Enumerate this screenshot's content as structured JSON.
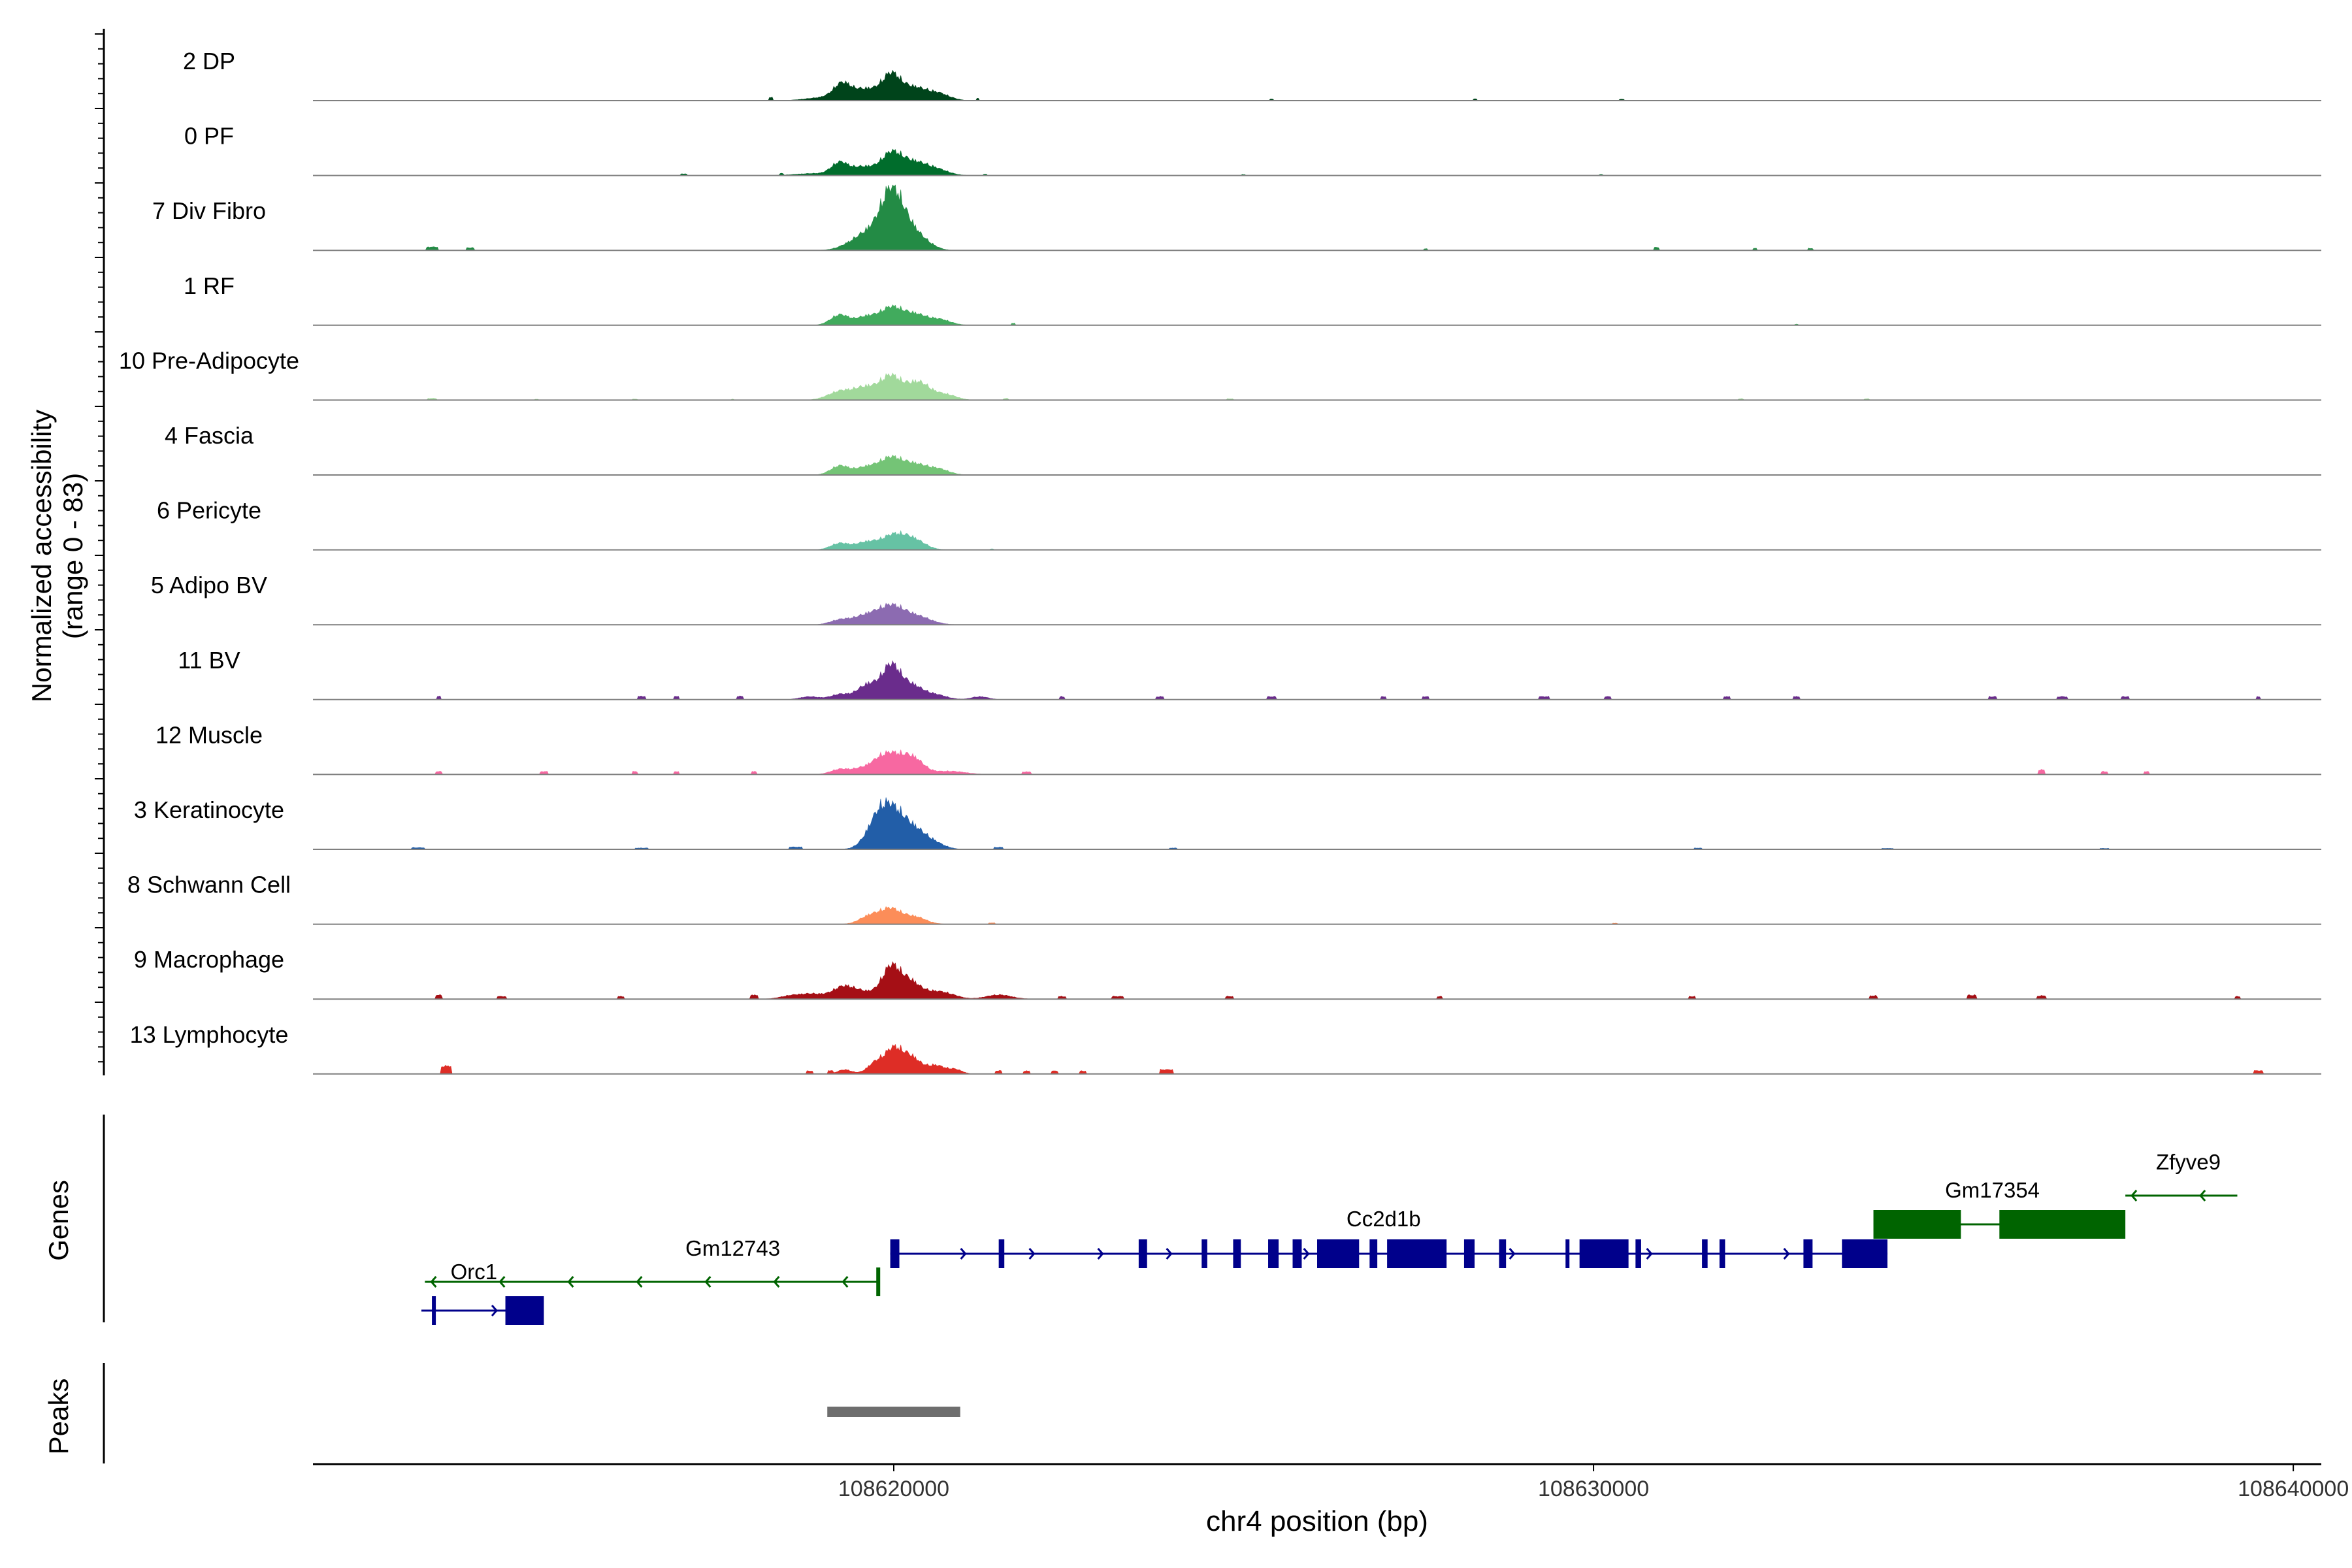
{
  "chart_data": {
    "type": "area",
    "title": "",
    "xlabel": "chr4 position (bp)",
    "ylabel_main": "Normalized accessibility",
    "ylabel_sub": "(range 0 - 83)",
    "y_range": [
      0,
      83
    ],
    "xlim": [
      108611700,
      108640400
    ],
    "x_ticks": [
      108620000,
      108630000,
      108640000
    ],
    "x_tick_labels": [
      "108620000",
      "108630000",
      "108640000"
    ],
    "grid": false,
    "tracks": [
      {
        "name": "2 DP",
        "color": "#00441b",
        "peaks": [
          [
            108619030,
            1.0,
            260
          ],
          [
            108619260,
            4.4,
            120
          ],
          [
            108619600,
            3.5,
            180
          ],
          [
            108619960,
            7.2,
            130
          ],
          [
            108620280,
            4.0,
            190
          ],
          [
            108620650,
            1.9,
            160
          ]
        ],
        "blips": [
          [
            108618250,
            1.0,
            60
          ],
          [
            108621200,
            0.8,
            50
          ],
          [
            108625400,
            0.5,
            50
          ],
          [
            108628300,
            0.5,
            60
          ],
          [
            108630400,
            0.4,
            80
          ]
        ]
      },
      {
        "name": "0 PF",
        "color": "#006d2c",
        "peaks": [
          [
            108618850,
            0.6,
            260
          ],
          [
            108619230,
            3.8,
            120
          ],
          [
            108619560,
            2.6,
            150
          ],
          [
            108619960,
            6.4,
            150
          ],
          [
            108620300,
            4.0,
            200
          ],
          [
            108620650,
            1.3,
            160
          ]
        ],
        "blips": [
          [
            108617000,
            0.5,
            80
          ],
          [
            108618400,
            0.5,
            60
          ],
          [
            108621300,
            0.4,
            60
          ],
          [
            108625000,
            0.3,
            50
          ],
          [
            108630100,
            0.3,
            60
          ]
        ]
      },
      {
        "name": "7 Div Fibro",
        "color": "#238b45",
        "peaks": [
          [
            108619420,
            1.9,
            180
          ],
          [
            108619700,
            5.4,
            180
          ],
          [
            108619960,
            15.4,
            140
          ],
          [
            108620180,
            7.0,
            150
          ],
          [
            108620430,
            2.4,
            150
          ]
        ],
        "blips": [
          [
            108613400,
            1.0,
            180
          ],
          [
            108613950,
            0.8,
            100
          ],
          [
            108627600,
            0.5,
            60
          ],
          [
            108630900,
            0.9,
            80
          ],
          [
            108632300,
            0.6,
            60
          ],
          [
            108633100,
            0.6,
            60
          ]
        ]
      },
      {
        "name": "1 RF",
        "color": "#41ab5d",
        "peaks": [
          [
            108619230,
            3.2,
            130
          ],
          [
            108619600,
            2.5,
            140
          ],
          [
            108619960,
            5.3,
            160
          ],
          [
            108620310,
            3.2,
            170
          ],
          [
            108620670,
            1.6,
            150
          ]
        ],
        "blips": [
          [
            108621700,
            0.6,
            60
          ],
          [
            108632900,
            0.3,
            60
          ]
        ]
      },
      {
        "name": "10 Pre-Adipocyte",
        "color": "#a1d99b",
        "peaks": [
          [
            108619250,
            2.8,
            180
          ],
          [
            108619600,
            3.5,
            150
          ],
          [
            108619950,
            7.2,
            150
          ],
          [
            108620350,
            5.5,
            170
          ],
          [
            108620750,
            1.6,
            150
          ]
        ],
        "blips": [
          [
            108613400,
            0.5,
            140
          ],
          [
            108614900,
            0.3,
            60
          ],
          [
            108616300,
            0.3,
            80
          ],
          [
            108617700,
            0.3,
            50
          ],
          [
            108621600,
            0.5,
            80
          ],
          [
            108624800,
            0.4,
            100
          ],
          [
            108632100,
            0.4,
            80
          ],
          [
            108633900,
            0.4,
            80
          ]
        ]
      },
      {
        "name": "4 Fascia",
        "color": "#74c476",
        "peaks": [
          [
            108619230,
            2.8,
            130
          ],
          [
            108619600,
            2.3,
            150
          ],
          [
            108619950,
            5.0,
            160
          ],
          [
            108620300,
            3.2,
            180
          ],
          [
            108620650,
            1.6,
            150
          ]
        ],
        "blips": []
      },
      {
        "name": "6 Pericyte",
        "color": "#66c2a4",
        "peaks": [
          [
            108619230,
            2.0,
            130
          ],
          [
            108619600,
            2.2,
            150
          ],
          [
            108620000,
            4.5,
            180
          ],
          [
            108620300,
            2.6,
            160
          ]
        ],
        "blips": [
          [
            108621400,
            0.3,
            60
          ]
        ]
      },
      {
        "name": "5 Adipo BV",
        "color": "#8c6bb1",
        "peaks": [
          [
            108619230,
            1.4,
            140
          ],
          [
            108619600,
            2.7,
            180
          ],
          [
            108619960,
            5.4,
            180
          ],
          [
            108620330,
            2.5,
            200
          ]
        ],
        "blips": []
      },
      {
        "name": "11 BV",
        "color": "#6a2c8c",
        "peaks": [
          [
            108618800,
            0.9,
            140
          ],
          [
            108619230,
            1.6,
            130
          ],
          [
            108619630,
            4.6,
            150
          ],
          [
            108619960,
            9.8,
            130
          ],
          [
            108620250,
            4.3,
            160
          ],
          [
            108620600,
            1.4,
            160
          ],
          [
            108621230,
            0.9,
            120
          ]
        ],
        "blips": [
          [
            108613500,
            1.0,
            70
          ],
          [
            108616400,
            1.0,
            120
          ],
          [
            108616900,
            1.0,
            80
          ],
          [
            108617800,
            1.0,
            100
          ],
          [
            108622400,
            0.9,
            80
          ],
          [
            108623800,
            0.9,
            100
          ],
          [
            108625400,
            0.9,
            120
          ],
          [
            108627000,
            0.9,
            80
          ],
          [
            108627600,
            0.9,
            80
          ],
          [
            108629300,
            0.9,
            150
          ],
          [
            108630200,
            0.9,
            100
          ],
          [
            108631900,
            0.9,
            100
          ],
          [
            108632900,
            0.9,
            100
          ],
          [
            108635700,
            0.9,
            120
          ],
          [
            108636700,
            0.9,
            150
          ],
          [
            108637600,
            0.9,
            120
          ],
          [
            108639500,
            0.9,
            60
          ]
        ]
      },
      {
        "name": "12 Muscle",
        "color": "#f768a1",
        "peaks": [
          [
            108619230,
            1.6,
            130
          ],
          [
            108619500,
            1.3,
            120
          ],
          [
            108619780,
            3.5,
            150
          ],
          [
            108620000,
            4.8,
            160
          ],
          [
            108620280,
            4.6,
            150
          ],
          [
            108620800,
            1.0,
            220
          ]
        ],
        "blips": [
          [
            108613500,
            0.9,
            80
          ],
          [
            108615000,
            0.9,
            120
          ],
          [
            108616300,
            0.9,
            80
          ],
          [
            108616900,
            0.9,
            80
          ],
          [
            108618000,
            0.9,
            80
          ],
          [
            108621900,
            0.8,
            120
          ],
          [
            108636400,
            1.4,
            100
          ],
          [
            108637300,
            0.9,
            80
          ],
          [
            108637900,
            0.9,
            80
          ]
        ]
      },
      {
        "name": "3 Keratinocyte",
        "color": "#225ea8",
        "peaks": [
          [
            108619800,
            9.8,
            170
          ],
          [
            108620050,
            8.6,
            180
          ],
          [
            108620350,
            4.0,
            160
          ],
          [
            108620600,
            1.4,
            150
          ]
        ],
        "blips": [
          [
            108613200,
            0.5,
            200
          ],
          [
            108616400,
            0.4,
            200
          ],
          [
            108618600,
            0.7,
            200
          ],
          [
            108621500,
            0.6,
            140
          ],
          [
            108624000,
            0.4,
            120
          ],
          [
            108631500,
            0.4,
            120
          ],
          [
            108634200,
            0.3,
            160
          ],
          [
            108637300,
            0.3,
            120
          ]
        ]
      },
      {
        "name": "8 Schwann Cell",
        "color": "#fc8d59",
        "peaks": [
          [
            108619650,
            2.4,
            140
          ],
          [
            108619950,
            4.6,
            150
          ],
          [
            108620300,
            2.2,
            160
          ]
        ],
        "blips": [
          [
            108621400,
            0.4,
            80
          ],
          [
            108630300,
            0.3,
            80
          ]
        ]
      },
      {
        "name": "9 Macrophage",
        "color": "#a50f15",
        "peaks": [
          [
            108618550,
            1.1,
            160
          ],
          [
            108618850,
            1.4,
            150
          ],
          [
            108619280,
            3.8,
            160
          ],
          [
            108619600,
            1.9,
            160
          ],
          [
            108619960,
            9.6,
            130
          ],
          [
            108620230,
            5.0,
            140
          ],
          [
            108620560,
            2.0,
            170
          ],
          [
            108620800,
            1.0,
            150
          ],
          [
            108621500,
            1.3,
            180
          ]
        ],
        "blips": [
          [
            108613500,
            1.2,
            100
          ],
          [
            108614400,
            0.8,
            120
          ],
          [
            108616100,
            0.8,
            100
          ],
          [
            108618000,
            1.2,
            120
          ],
          [
            108622400,
            0.8,
            120
          ],
          [
            108623200,
            0.8,
            180
          ],
          [
            108624800,
            0.8,
            120
          ],
          [
            108627800,
            0.8,
            80
          ],
          [
            108631400,
            0.8,
            100
          ],
          [
            108634000,
            1.0,
            130
          ],
          [
            108635400,
            1.2,
            130
          ],
          [
            108636400,
            1.0,
            120
          ],
          [
            108639200,
            0.8,
            80
          ]
        ]
      },
      {
        "name": "13 Lymphocyte",
        "color": "#de2d26",
        "peaks": [
          [
            108619300,
            1.3,
            100
          ],
          [
            108619750,
            3.5,
            120
          ],
          [
            108620000,
            7.2,
            120
          ],
          [
            108620250,
            5.0,
            130
          ],
          [
            108620600,
            2.6,
            130
          ],
          [
            108620880,
            1.3,
            100
          ]
        ],
        "blips": [
          [
            108613600,
            2.4,
            160
          ],
          [
            108618800,
            0.9,
            100
          ],
          [
            108619100,
            0.9,
            80
          ],
          [
            108621500,
            1.0,
            100
          ],
          [
            108621900,
            0.9,
            100
          ],
          [
            108622300,
            0.9,
            100
          ],
          [
            108622700,
            0.9,
            100
          ],
          [
            108623900,
            1.3,
            180
          ],
          [
            108639500,
            1.0,
            150
          ]
        ]
      }
    ],
    "genes_label": "Genes",
    "genes": [
      {
        "name": "Gm12743",
        "color": "#006400",
        "strand": "-",
        "start": 108613300,
        "end": 108619800,
        "label_x": 108617700,
        "row": 1,
        "exons": [
          [
            108619750,
            108619800
          ]
        ]
      },
      {
        "name": "Orc1",
        "color": "#00008b",
        "strand": "+",
        "start": 108613250,
        "end": 108614950,
        "label_x": 108614000,
        "label_row": 1,
        "row": 2,
        "exons": [
          [
            108613400,
            108613450
          ],
          [
            108614450,
            108615000
          ]
        ]
      },
      {
        "name": "Cc2d1b",
        "color": "#00008b",
        "strand": "+",
        "start": 108619950,
        "end": 108634200,
        "label_x": 108627000,
        "row": 0,
        "exons": [
          [
            108619950,
            108620080
          ],
          [
            108621500,
            108621580
          ],
          [
            108623500,
            108623620
          ],
          [
            108624400,
            108624480
          ],
          [
            108624850,
            108624960
          ],
          [
            108625350,
            108625500
          ],
          [
            108625700,
            108625830
          ],
          [
            108626050,
            108626650
          ],
          [
            108626800,
            108626910
          ],
          [
            108627050,
            108627900
          ],
          [
            108628150,
            108628300
          ],
          [
            108628650,
            108628750
          ],
          [
            108629600,
            108629620
          ],
          [
            108629800,
            108630500
          ],
          [
            108630600,
            108630680
          ],
          [
            108631550,
            108631630
          ],
          [
            108631800,
            108631880
          ],
          [
            108633000,
            108633130
          ],
          [
            108633550,
            108634200
          ]
        ]
      },
      {
        "name": "Gm17354",
        "color": "#006400",
        "strand": "-",
        "start": 108634000,
        "end": 108637400,
        "label_x": 108635700,
        "row": -1,
        "exons": [
          [
            108634000,
            108635250
          ],
          [
            108635800,
            108637600
          ]
        ]
      },
      {
        "name": "Zfyve9",
        "color": "#006400",
        "strand": "-",
        "start": 108637600,
        "end": 108639200,
        "label_x": 108638500,
        "row": -2,
        "exons": []
      }
    ],
    "peaks_label": "Peaks",
    "peak_regions": [
      [
        108619050,
        108620950
      ]
    ]
  }
}
